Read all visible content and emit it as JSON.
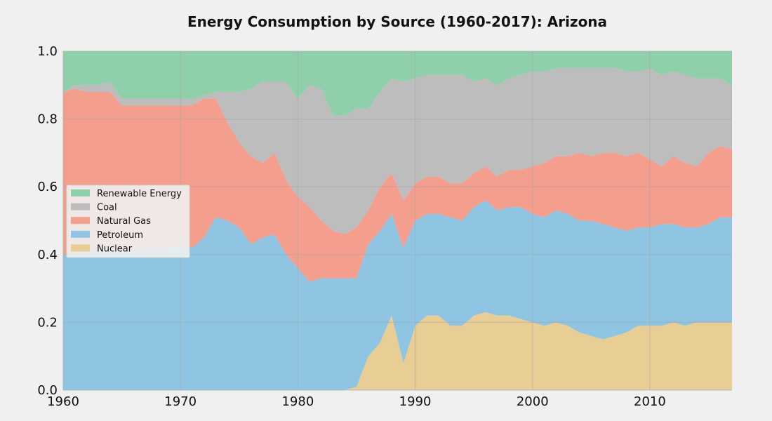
{
  "chart_data": {
    "type": "area",
    "stacked": true,
    "normalized": true,
    "title": "Energy Consumption by Source (1960-2017): Arizona",
    "xlabel": "",
    "ylabel": "",
    "xlim": [
      1960,
      2017
    ],
    "ylim": [
      0,
      1
    ],
    "x_ticks": [
      1960,
      1970,
      1980,
      1990,
      2000,
      2010
    ],
    "y_ticks": [
      "0.0",
      "0.2",
      "0.4",
      "0.6",
      "0.8",
      "1.0"
    ],
    "grid": true,
    "legend_position": "center-left",
    "x": [
      1960,
      1961,
      1962,
      1963,
      1964,
      1965,
      1966,
      1967,
      1968,
      1969,
      1970,
      1971,
      1972,
      1973,
      1974,
      1975,
      1976,
      1977,
      1978,
      1979,
      1980,
      1981,
      1982,
      1983,
      1984,
      1985,
      1986,
      1987,
      1988,
      1989,
      1990,
      1991,
      1992,
      1993,
      1994,
      1995,
      1996,
      1997,
      1998,
      1999,
      2000,
      2001,
      2002,
      2003,
      2004,
      2005,
      2006,
      2007,
      2008,
      2009,
      2010,
      2011,
      2012,
      2013,
      2014,
      2015,
      2016,
      2017
    ],
    "series": [
      {
        "name": "Nuclear",
        "color": "#e8cd94",
        "values": [
          0,
          0,
          0,
          0,
          0,
          0,
          0,
          0,
          0,
          0,
          0,
          0,
          0,
          0,
          0,
          0,
          0,
          0,
          0,
          0,
          0,
          0,
          0,
          0,
          0,
          0.01,
          0.1,
          0.14,
          0.22,
          0.08,
          0.19,
          0.22,
          0.22,
          0.19,
          0.19,
          0.22,
          0.23,
          0.22,
          0.22,
          0.21,
          0.2,
          0.19,
          0.2,
          0.19,
          0.17,
          0.16,
          0.15,
          0.16,
          0.17,
          0.19,
          0.19,
          0.19,
          0.2,
          0.19,
          0.2,
          0.2,
          0.2,
          0.2
        ]
      },
      {
        "name": "Petroleum",
        "color": "#8fc5e3",
        "values": [
          0.4,
          0.4,
          0.41,
          0.41,
          0.41,
          0.41,
          0.41,
          0.42,
          0.42,
          0.42,
          0.43,
          0.42,
          0.45,
          0.51,
          0.5,
          0.48,
          0.43,
          0.45,
          0.46,
          0.4,
          0.36,
          0.32,
          0.33,
          0.33,
          0.33,
          0.32,
          0.33,
          0.33,
          0.3,
          0.34,
          0.31,
          0.3,
          0.3,
          0.32,
          0.31,
          0.32,
          0.33,
          0.31,
          0.32,
          0.33,
          0.32,
          0.32,
          0.33,
          0.33,
          0.33,
          0.34,
          0.34,
          0.32,
          0.3,
          0.29,
          0.29,
          0.3,
          0.29,
          0.29,
          0.28,
          0.29,
          0.31,
          0.31
        ]
      },
      {
        "name": "Natural Gas",
        "color": "#f49e8d",
        "values": [
          0.48,
          0.49,
          0.47,
          0.47,
          0.47,
          0.43,
          0.43,
          0.42,
          0.42,
          0.42,
          0.41,
          0.42,
          0.41,
          0.35,
          0.29,
          0.25,
          0.26,
          0.22,
          0.24,
          0.22,
          0.21,
          0.22,
          0.17,
          0.14,
          0.13,
          0.15,
          0.1,
          0.13,
          0.12,
          0.14,
          0.11,
          0.11,
          0.11,
          0.1,
          0.11,
          0.1,
          0.1,
          0.1,
          0.11,
          0.11,
          0.14,
          0.16,
          0.16,
          0.17,
          0.2,
          0.19,
          0.21,
          0.22,
          0.22,
          0.22,
          0.2,
          0.17,
          0.2,
          0.19,
          0.18,
          0.21,
          0.21,
          0.2
        ]
      },
      {
        "name": "Coal",
        "color": "#bdbdbd",
        "values": [
          0,
          0.01,
          0.02,
          0.02,
          0.03,
          0.02,
          0.02,
          0.02,
          0.02,
          0.02,
          0.02,
          0.02,
          0.01,
          0.02,
          0.09,
          0.15,
          0.2,
          0.24,
          0.21,
          0.29,
          0.29,
          0.36,
          0.39,
          0.34,
          0.35,
          0.35,
          0.3,
          0.28,
          0.28,
          0.35,
          0.31,
          0.3,
          0.3,
          0.32,
          0.32,
          0.27,
          0.26,
          0.27,
          0.27,
          0.28,
          0.28,
          0.27,
          0.26,
          0.26,
          0.25,
          0.26,
          0.25,
          0.25,
          0.25,
          0.24,
          0.27,
          0.27,
          0.25,
          0.26,
          0.26,
          0.22,
          0.2,
          0.19
        ]
      },
      {
        "name": "Renewable Energy",
        "color": "#8fd0aa",
        "values": [
          0.12,
          0.1,
          0.1,
          0.1,
          0.09,
          0.14,
          0.14,
          0.14,
          0.14,
          0.14,
          0.14,
          0.14,
          0.13,
          0.12,
          0.12,
          0.12,
          0.11,
          0.09,
          0.09,
          0.09,
          0.14,
          0.1,
          0.11,
          0.19,
          0.19,
          0.17,
          0.17,
          0.12,
          0.08,
          0.09,
          0.08,
          0.07,
          0.07,
          0.07,
          0.07,
          0.09,
          0.08,
          0.1,
          0.08,
          0.07,
          0.06,
          0.06,
          0.05,
          0.05,
          0.05,
          0.05,
          0.05,
          0.05,
          0.06,
          0.06,
          0.05,
          0.07,
          0.06,
          0.07,
          0.08,
          0.08,
          0.08,
          0.1
        ]
      }
    ],
    "legend_order": [
      "Renewable Energy",
      "Coal",
      "Natural Gas",
      "Petroleum",
      "Nuclear"
    ]
  }
}
